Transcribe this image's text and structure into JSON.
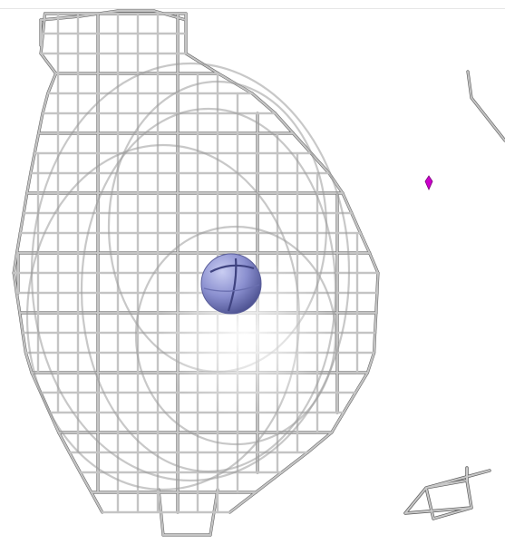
{
  "scene": {
    "background": "#ffffff",
    "mesh_color": "#b8b8b8",
    "mesh_shadow_color": "#555555",
    "atom_color": "#8a8fcf",
    "atom_highlight_color": "#c9cdf2",
    "marker_color": "#cc00cc",
    "items": {
      "density_cage": "mesh-cage",
      "central_atom": "sphere",
      "side_marker": "diamond",
      "edge_fragment": "mesh-fragment",
      "corner_fragment": "mesh-fragment"
    }
  }
}
